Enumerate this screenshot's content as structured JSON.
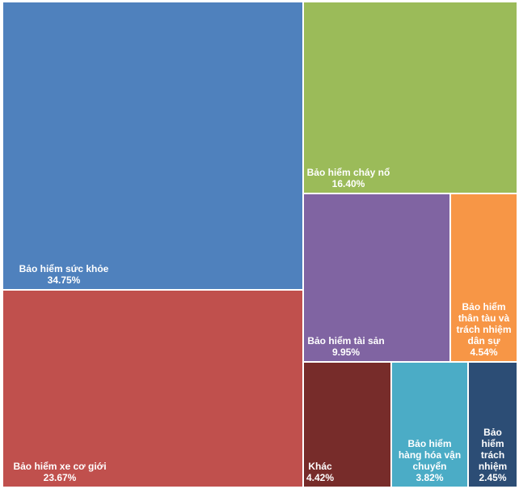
{
  "chart_data": {
    "type": "treemap",
    "title": "",
    "unit": "%",
    "items": [
      {
        "name": "Bảo hiểm sức khỏe",
        "value": 34.75,
        "display": "34.75%",
        "color": "#4F81BD"
      },
      {
        "name": "Bảo hiểm xe cơ giới",
        "value": 23.67,
        "display": "23.67%",
        "color": "#C0504D"
      },
      {
        "name": "Bảo hiểm cháy nổ",
        "value": 16.4,
        "display": "16.40%",
        "color": "#9BBB59"
      },
      {
        "name": "Bảo hiểm tài sản",
        "value": 9.95,
        "display": "9.95%",
        "color": "#8064A2"
      },
      {
        "name": "Bảo hiểm\nthân tàu và\ntrách nhiệm\ndân sự",
        "value": 4.54,
        "display": "4.54%",
        "color": "#F79646"
      },
      {
        "name": "Khác",
        "value": 4.42,
        "display": "4.42%",
        "color": "#772C2A"
      },
      {
        "name": "Bảo hiểm\nhàng hóa vận\nchuyển",
        "value": 3.82,
        "display": "3.82%",
        "color": "#4BACC6"
      },
      {
        "name": "Bảo\nhiểm\ntrách\nnhiệm",
        "value": 2.45,
        "display": "2.45%",
        "color": "#2C4D75"
      }
    ]
  }
}
